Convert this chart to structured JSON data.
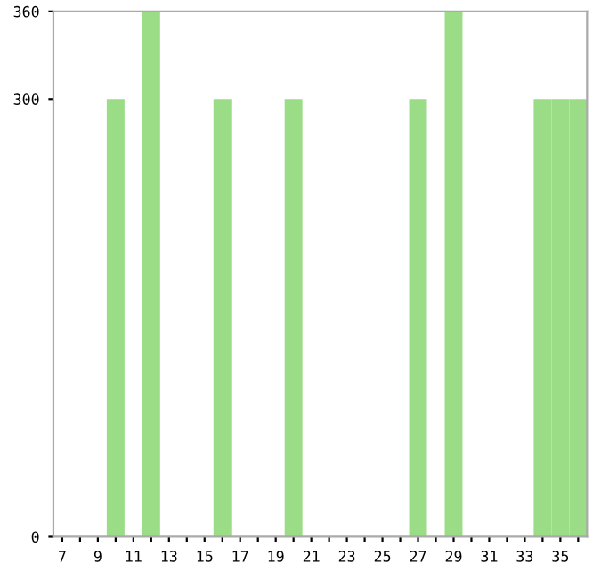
{
  "chart_data": {
    "type": "bar",
    "categories": [
      "7",
      null,
      "9",
      null,
      "11",
      null,
      "13",
      null,
      "15",
      null,
      "17",
      null,
      "19",
      null,
      "21",
      null,
      "23",
      null,
      "25",
      null,
      "27",
      null,
      "29",
      null,
      "31",
      null,
      "33",
      null,
      "35",
      null
    ],
    "values": [
      0,
      0,
      0,
      300,
      0,
      360,
      0,
      0,
      0,
      300,
      0,
      0,
      0,
      300,
      0,
      0,
      0,
      0,
      0,
      0,
      300,
      0,
      360,
      0,
      0,
      0,
      0,
      300,
      300,
      300
    ],
    "color": "#9bdc87",
    "ylim": [
      0,
      360
    ],
    "yticks": [
      0,
      300,
      360
    ],
    "grid": false
  }
}
